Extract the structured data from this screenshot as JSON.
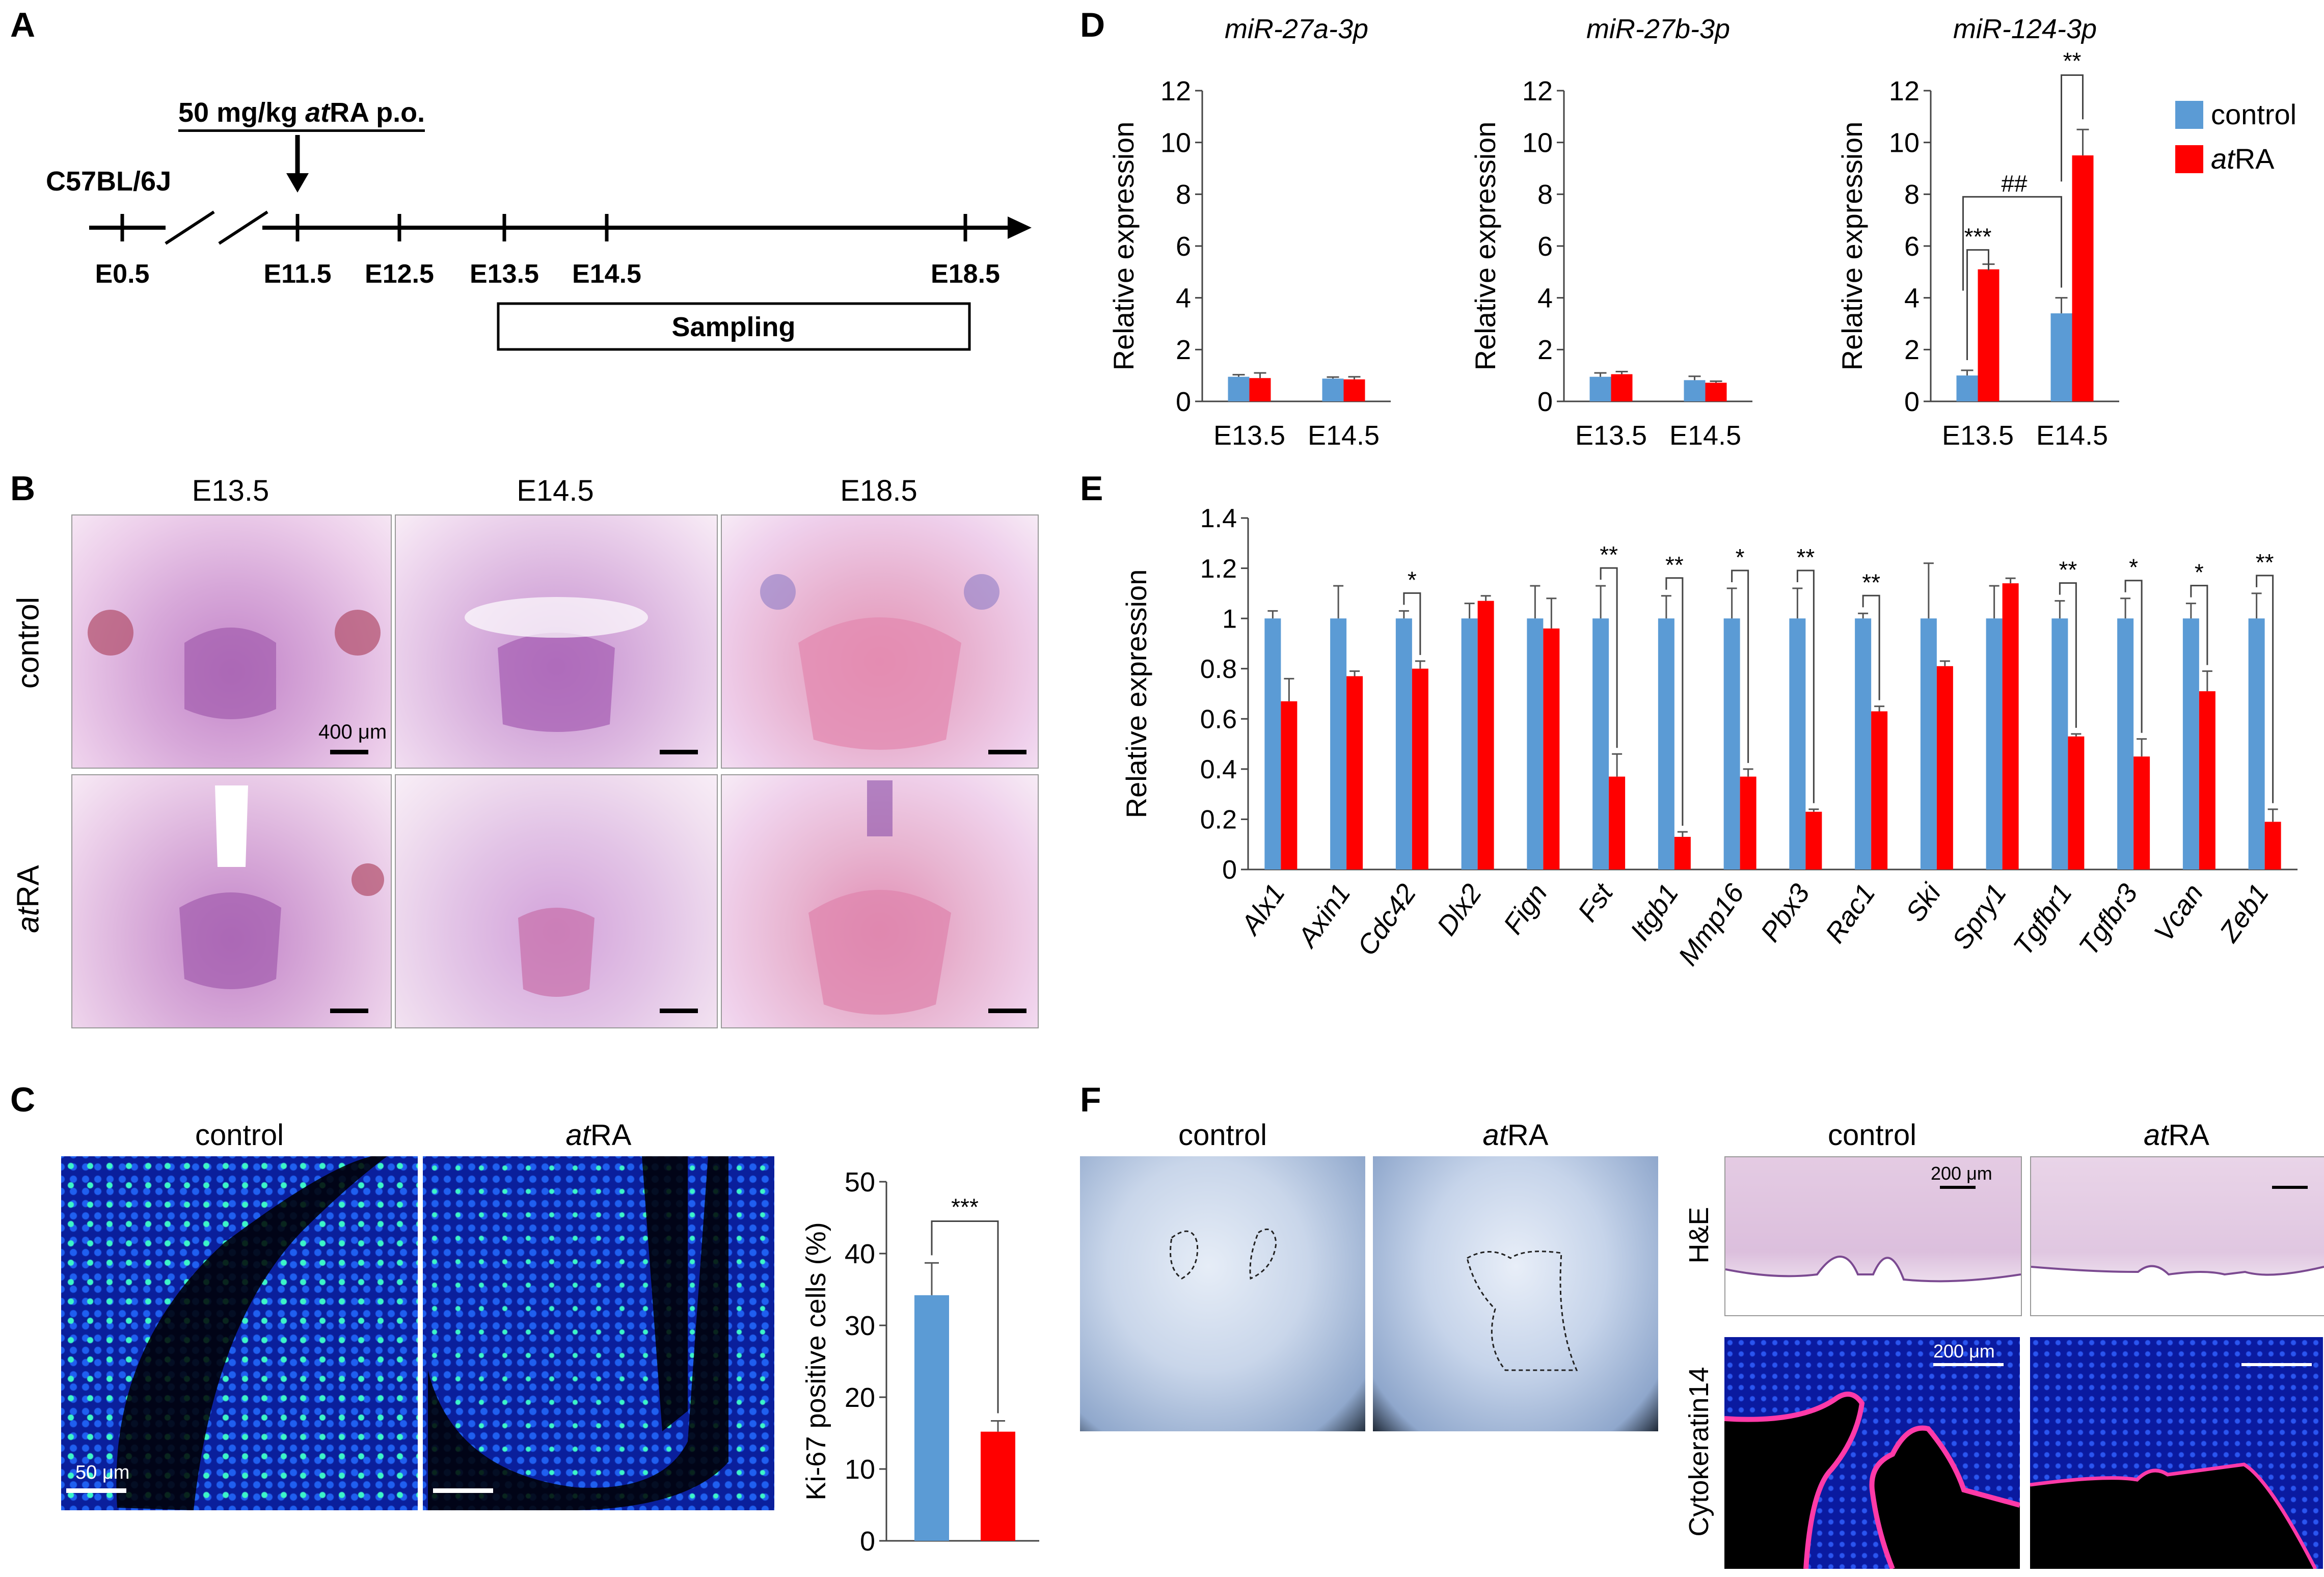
{
  "panels": {
    "A": "A",
    "B": "B",
    "C": "C",
    "D": "D",
    "E": "E",
    "F": "F"
  },
  "panelA": {
    "dose_prefix": "50 mg/kg ",
    "dose_italic": "at",
    "dose_suffix": "RA p.o.",
    "strain": "C57BL/6J",
    "stages": [
      "E0.5",
      "E11.5",
      "E12.5",
      "E13.5",
      "E14.5",
      "E18.5"
    ],
    "sampling": "Sampling"
  },
  "panelB": {
    "columns": [
      "E13.5",
      "E14.5",
      "E18.5"
    ],
    "row_control": "control",
    "row_atra_italic": "at",
    "row_atra_rest": "RA",
    "scalebar": "400 μm"
  },
  "panelC": {
    "title_control": "control",
    "title_atra_italic": "at",
    "title_atra_rest": "RA",
    "scalebar": "50 μm"
  },
  "panelF": {
    "whole_control": "control",
    "whole_atra_italic": "at",
    "whole_atra_rest": "RA",
    "sec_control": "control",
    "sec_atra_italic": "at",
    "sec_atra_rest": "RA",
    "row_he": "H&E",
    "row_ck": "Cytokeratin14",
    "scalebar": "200 μm"
  },
  "colors": {
    "control": "#5b9bd5",
    "atra": "#ff0000"
  },
  "chart_data": [
    {
      "id": "D1",
      "type": "bar",
      "title": "miR-27a-3p",
      "ylabel": "Relative expression",
      "ylim": [
        0,
        12
      ],
      "yticks": [
        0,
        2,
        4,
        6,
        8,
        10,
        12
      ],
      "categories": [
        "E13.5",
        "E14.5"
      ],
      "series": [
        {
          "name": "control",
          "values": [
            0.95,
            0.88
          ],
          "err": [
            0.08,
            0.06
          ]
        },
        {
          "name": "atRA",
          "values": [
            0.9,
            0.85
          ],
          "err": [
            0.2,
            0.1
          ]
        }
      ],
      "annotations": []
    },
    {
      "id": "D2",
      "type": "bar",
      "title": "miR-27b-3p",
      "ylabel": "Relative expression",
      "ylim": [
        0,
        12
      ],
      "yticks": [
        0,
        2,
        4,
        6,
        8,
        10,
        12
      ],
      "categories": [
        "E13.5",
        "E14.5"
      ],
      "series": [
        {
          "name": "control",
          "values": [
            0.95,
            0.82
          ],
          "err": [
            0.15,
            0.15
          ]
        },
        {
          "name": "atRA",
          "values": [
            1.05,
            0.72
          ],
          "err": [
            0.1,
            0.06
          ]
        }
      ],
      "annotations": []
    },
    {
      "id": "D3",
      "type": "bar",
      "title": "miR-124-3p",
      "ylabel": "Relative expression",
      "ylim": [
        0,
        12
      ],
      "yticks": [
        0,
        2,
        4,
        6,
        8,
        10,
        12
      ],
      "categories": [
        "E13.5",
        "E14.5"
      ],
      "series": [
        {
          "name": "control",
          "values": [
            1.0,
            3.4
          ],
          "err": [
            0.2,
            0.6
          ]
        },
        {
          "name": "atRA",
          "values": [
            5.1,
            9.5
          ],
          "err": [
            0.2,
            1.0
          ]
        }
      ],
      "annotations": [
        "***",
        "##",
        "**"
      ],
      "legend": {
        "placement": "top-right",
        "control": "control",
        "atra_italic": "at",
        "atra_rest": "RA"
      }
    },
    {
      "id": "E",
      "type": "bar",
      "ylabel": "Relative expression",
      "ylim": [
        0,
        1.4
      ],
      "yticks": [
        "0",
        "0.2",
        "0.4",
        "0.6",
        "0.8",
        "1",
        "1.2",
        "1.4"
      ],
      "categories": [
        "Alx1",
        "Axin1",
        "Cdc42",
        "Dlx2",
        "Fign",
        "Fst",
        "Itgb1",
        "Mmp16",
        "Pbx3",
        "Rac1",
        "Ski",
        "Spry1",
        "Tgfbr1",
        "Tgfbr3",
        "Vcan",
        "Zeb1"
      ],
      "series": [
        {
          "name": "control",
          "values": [
            1,
            1,
            1,
            1,
            1,
            1,
            1,
            1,
            1,
            1,
            1,
            1,
            1,
            1,
            1,
            1
          ],
          "err": [
            0.03,
            0.13,
            0.03,
            0.06,
            0.13,
            0.13,
            0.09,
            0.12,
            0.12,
            0.02,
            0.22,
            0.13,
            0.07,
            0.08,
            0.06,
            0.1
          ]
        },
        {
          "name": "atRA",
          "values": [
            0.67,
            0.77,
            0.8,
            1.07,
            0.96,
            0.37,
            0.13,
            0.37,
            0.23,
            0.63,
            0.81,
            1.14,
            0.53,
            0.45,
            0.71,
            0.19
          ],
          "err": [
            0.09,
            0.02,
            0.03,
            0.02,
            0.12,
            0.09,
            0.02,
            0.03,
            0.01,
            0.02,
            0.02,
            0.02,
            0.01,
            0.07,
            0.08,
            0.05
          ]
        }
      ],
      "significance": [
        "",
        "",
        "*",
        "",
        "",
        "**",
        "**",
        "*",
        "**",
        "**",
        "",
        "",
        "**",
        "*",
        "*",
        "**"
      ]
    },
    {
      "id": "C",
      "type": "bar",
      "ylabel": "Ki-67 positive cells (%)",
      "ylim": [
        0,
        50
      ],
      "yticks": [
        0,
        10,
        20,
        30,
        40,
        50
      ],
      "categories": [
        "control",
        "atRA"
      ],
      "values": [
        34.2,
        15.2
      ],
      "err": [
        4.5,
        1.5
      ],
      "annotations": [
        "***"
      ]
    }
  ]
}
